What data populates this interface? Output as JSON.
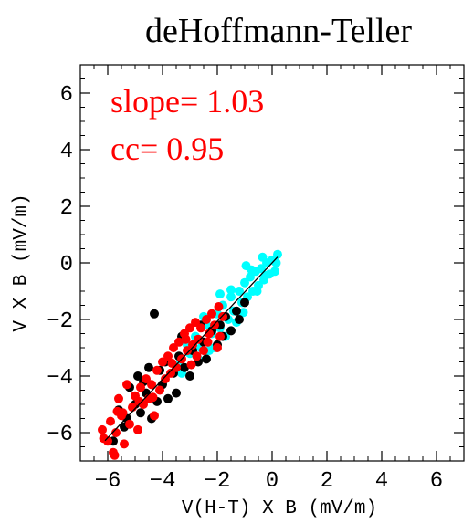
{
  "chart_data": {
    "type": "scatter",
    "title": "deHoffmann-Teller",
    "xlabel": "V(H-T) X B (mV/m)",
    "ylabel": "V X B (mV/m)",
    "xlim": [
      -7,
      7
    ],
    "ylim": [
      -7,
      7
    ],
    "xticks": [
      -6,
      -4,
      -2,
      0,
      2,
      4,
      6
    ],
    "yticks": [
      -6,
      -4,
      -2,
      0,
      2,
      4,
      6
    ],
    "minor_step": 0.5,
    "grid": false,
    "annotations": [
      {
        "text": "slope= 1.03",
        "color": "#ff0000"
      },
      {
        "text": "cc= 0.95",
        "color": "#ff0000"
      }
    ],
    "fit_line": {
      "slope": 1.03,
      "intercept": 0.0,
      "x_range": [
        -6.1,
        0.2
      ],
      "color": "#000000"
    },
    "series": [
      {
        "color": "#00ffff",
        "points": [
          [
            -3.0,
            -3.2
          ],
          [
            -2.8,
            -2.6
          ],
          [
            -2.6,
            -3.0
          ],
          [
            -2.4,
            -2.2
          ],
          [
            -2.2,
            -2.5
          ],
          [
            -2.0,
            -1.8
          ],
          [
            -1.9,
            -2.3
          ],
          [
            -1.8,
            -1.5
          ],
          [
            -1.6,
            -2.0
          ],
          [
            -1.5,
            -1.2
          ],
          [
            -1.4,
            -1.7
          ],
          [
            -1.2,
            -1.0
          ],
          [
            -1.1,
            -1.4
          ],
          [
            -1.0,
            -0.7
          ],
          [
            -0.9,
            -1.2
          ],
          [
            -0.8,
            -0.5
          ],
          [
            -0.7,
            -1.0
          ],
          [
            -0.6,
            -0.3
          ],
          [
            -0.5,
            -0.8
          ],
          [
            -0.4,
            -0.2
          ],
          [
            -0.3,
            -0.6
          ],
          [
            -0.2,
            0.0
          ],
          [
            -0.1,
            -0.4
          ],
          [
            0.0,
            0.1
          ],
          [
            0.1,
            -0.3
          ],
          [
            0.2,
            0.3
          ],
          [
            -0.35,
            0.2
          ],
          [
            0.15,
            0.0
          ],
          [
            -2.7,
            -3.4
          ],
          [
            -2.3,
            -3.1
          ],
          [
            -1.7,
            -2.6
          ],
          [
            -1.3,
            -2.1
          ],
          [
            -3.4,
            -3.6
          ],
          [
            -3.1,
            -2.9
          ],
          [
            -2.5,
            -1.9
          ],
          [
            -1.9,
            -1.1
          ],
          [
            -0.95,
            -0.1
          ],
          [
            -1.5,
            -0.95
          ],
          [
            -0.55,
            -1.0
          ],
          [
            -2.1,
            -3.0
          ],
          [
            -0.25,
            -0.45
          ],
          [
            -1.05,
            -1.75
          ],
          [
            -0.75,
            -0.25
          ],
          [
            -3.3,
            -3.9
          ]
        ]
      },
      {
        "color": "#000000",
        "points": [
          [
            -5.8,
            -6.3
          ],
          [
            -5.6,
            -5.2
          ],
          [
            -5.4,
            -5.8
          ],
          [
            -5.2,
            -4.4
          ],
          [
            -5.0,
            -5.0
          ],
          [
            -4.9,
            -4.0
          ],
          [
            -4.8,
            -5.3
          ],
          [
            -4.6,
            -4.6
          ],
          [
            -4.5,
            -3.7
          ],
          [
            -4.4,
            -5.5
          ],
          [
            -4.3,
            -1.8
          ],
          [
            -4.2,
            -4.9
          ],
          [
            -4.0,
            -4.3
          ],
          [
            -3.9,
            -3.5
          ],
          [
            -3.8,
            -4.8
          ],
          [
            -3.6,
            -3.9
          ],
          [
            -3.5,
            -4.6
          ],
          [
            -3.4,
            -3.3
          ],
          [
            -3.2,
            -3.7
          ],
          [
            -3.0,
            -4.0
          ],
          [
            -2.9,
            -3.1
          ],
          [
            -2.7,
            -3.5
          ],
          [
            -2.5,
            -2.8
          ],
          [
            -2.4,
            -3.4
          ],
          [
            -2.2,
            -2.4
          ],
          [
            -2.0,
            -2.9
          ],
          [
            -1.9,
            -2.2
          ],
          [
            -1.7,
            -1.9
          ],
          [
            -1.5,
            -2.4
          ],
          [
            -1.3,
            -1.7
          ],
          [
            -1.2,
            -2.0
          ],
          [
            -1.0,
            -1.4
          ],
          [
            -5.3,
            -5.5
          ],
          [
            -4.7,
            -4.2
          ],
          [
            -4.1,
            -3.8
          ],
          [
            -3.3,
            -2.6
          ],
          [
            -2.6,
            -2.2
          ],
          [
            -1.8,
            -2.6
          ]
        ]
      },
      {
        "color": "#ff0000",
        "points": [
          [
            -6.2,
            -5.9
          ],
          [
            -6.0,
            -6.3
          ],
          [
            -5.9,
            -5.6
          ],
          [
            -5.8,
            -6.7
          ],
          [
            -5.7,
            -6.0
          ],
          [
            -5.6,
            -4.8
          ],
          [
            -5.5,
            -5.4
          ],
          [
            -5.4,
            -6.4
          ],
          [
            -5.3,
            -4.3
          ],
          [
            -5.2,
            -5.7
          ],
          [
            -5.1,
            -5.1
          ],
          [
            -5.0,
            -4.7
          ],
          [
            -4.9,
            -5.9
          ],
          [
            -4.8,
            -4.4
          ],
          [
            -4.7,
            -5.0
          ],
          [
            -4.6,
            -4.1
          ],
          [
            -4.5,
            -4.8
          ],
          [
            -4.4,
            -4.3
          ],
          [
            -4.3,
            -5.4
          ],
          [
            -4.2,
            -3.8
          ],
          [
            -4.1,
            -4.5
          ],
          [
            -4.0,
            -3.5
          ],
          [
            -3.9,
            -4.1
          ],
          [
            -3.8,
            -3.3
          ],
          [
            -3.7,
            -3.9
          ],
          [
            -3.6,
            -3.0
          ],
          [
            -3.5,
            -3.7
          ],
          [
            -3.4,
            -2.8
          ],
          [
            -3.3,
            -3.4
          ],
          [
            -3.2,
            -2.5
          ],
          [
            -3.1,
            -3.1
          ],
          [
            -3.0,
            -2.3
          ],
          [
            -2.9,
            -2.9
          ],
          [
            -2.8,
            -2.1
          ],
          [
            -2.7,
            -2.7
          ],
          [
            -2.6,
            -2.3
          ],
          [
            -2.5,
            -3.1
          ],
          [
            -2.4,
            -2.0
          ],
          [
            -2.3,
            -2.5
          ],
          [
            -2.2,
            -1.8
          ],
          [
            -2.1,
            -2.2
          ],
          [
            -2.0,
            -3.0
          ],
          [
            -1.9,
            -2.6
          ],
          [
            -1.8,
            -1.9
          ],
          [
            -5.75,
            -6.8
          ],
          [
            -5.45,
            -5.3
          ],
          [
            -4.85,
            -4.9
          ],
          [
            -4.35,
            -4.75
          ],
          [
            -3.65,
            -3.55
          ],
          [
            -3.15,
            -2.7
          ],
          [
            -2.75,
            -3.3
          ],
          [
            -2.35,
            -2.8
          ],
          [
            -2.95,
            -3.6
          ],
          [
            -1.95,
            -1.55
          ],
          [
            -6.15,
            -6.2
          ],
          [
            -5.65,
            -5.25
          ]
        ]
      }
    ]
  }
}
